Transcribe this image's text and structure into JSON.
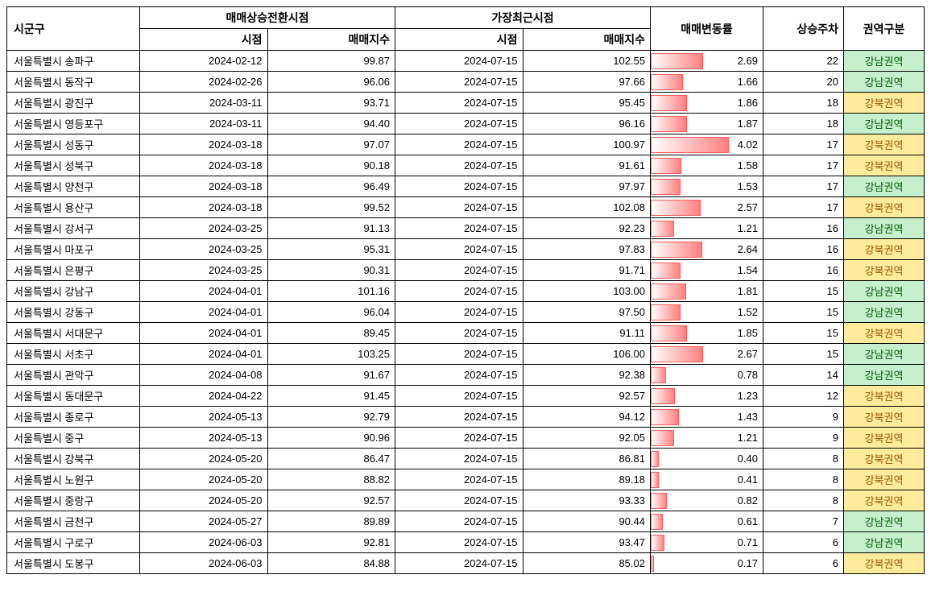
{
  "table": {
    "headers": {
      "sigungu": "시군구",
      "turning": "매매상승전환시점",
      "recent": "가장최근시점",
      "sub_date": "시점",
      "sub_index": "매매지수",
      "change": "매매변동률",
      "weeks": "상승주차",
      "region": "권역구분"
    },
    "styling": {
      "border_color": "#000000",
      "bar_gradient_from": "#ffffff",
      "bar_gradient_to": "#ff8080",
      "bar_border": "#ff6060",
      "region_colors": {
        "강남권역": {
          "bg": "#c6efce",
          "fg": "#006100"
        },
        "강북권역": {
          "bg": "#ffeb9c",
          "fg": "#9c5700"
        }
      },
      "font_size_body": 13,
      "font_size_header": 14,
      "max_change_for_bar": 4.02
    },
    "rows": [
      {
        "sigungu": "서울특별시 송파구",
        "t_date": "2024-02-12",
        "t_idx": "99.87",
        "r_date": "2024-07-15",
        "r_idx": "102.55",
        "change": "2.69",
        "weeks": "22",
        "region": "강남권역"
      },
      {
        "sigungu": "서울특별시 동작구",
        "t_date": "2024-02-26",
        "t_idx": "96.06",
        "r_date": "2024-07-15",
        "r_idx": "97.66",
        "change": "1.66",
        "weeks": "20",
        "region": "강남권역"
      },
      {
        "sigungu": "서울특별시 광진구",
        "t_date": "2024-03-11",
        "t_idx": "93.71",
        "r_date": "2024-07-15",
        "r_idx": "95.45",
        "change": "1.86",
        "weeks": "18",
        "region": "강북권역"
      },
      {
        "sigungu": "서울특별시 영등포구",
        "t_date": "2024-03-11",
        "t_idx": "94.40",
        "r_date": "2024-07-15",
        "r_idx": "96.16",
        "change": "1.87",
        "weeks": "18",
        "region": "강남권역"
      },
      {
        "sigungu": "서울특별시 성동구",
        "t_date": "2024-03-18",
        "t_idx": "97.07",
        "r_date": "2024-07-15",
        "r_idx": "100.97",
        "change": "4.02",
        "weeks": "17",
        "region": "강북권역"
      },
      {
        "sigungu": "서울특별시 성북구",
        "t_date": "2024-03-18",
        "t_idx": "90.18",
        "r_date": "2024-07-15",
        "r_idx": "91.61",
        "change": "1.58",
        "weeks": "17",
        "region": "강북권역"
      },
      {
        "sigungu": "서울특별시 양천구",
        "t_date": "2024-03-18",
        "t_idx": "96.49",
        "r_date": "2024-07-15",
        "r_idx": "97.97",
        "change": "1.53",
        "weeks": "17",
        "region": "강남권역"
      },
      {
        "sigungu": "서울특별시 용산구",
        "t_date": "2024-03-18",
        "t_idx": "99.52",
        "r_date": "2024-07-15",
        "r_idx": "102.08",
        "change": "2.57",
        "weeks": "17",
        "region": "강북권역"
      },
      {
        "sigungu": "서울특별시 강서구",
        "t_date": "2024-03-25",
        "t_idx": "91.13",
        "r_date": "2024-07-15",
        "r_idx": "92.23",
        "change": "1.21",
        "weeks": "16",
        "region": "강남권역"
      },
      {
        "sigungu": "서울특별시 마포구",
        "t_date": "2024-03-25",
        "t_idx": "95.31",
        "r_date": "2024-07-15",
        "r_idx": "97.83",
        "change": "2.64",
        "weeks": "16",
        "region": "강북권역"
      },
      {
        "sigungu": "서울특별시 은평구",
        "t_date": "2024-03-25",
        "t_idx": "90.31",
        "r_date": "2024-07-15",
        "r_idx": "91.71",
        "change": "1.54",
        "weeks": "16",
        "region": "강북권역"
      },
      {
        "sigungu": "서울특별시 강남구",
        "t_date": "2024-04-01",
        "t_idx": "101.16",
        "r_date": "2024-07-15",
        "r_idx": "103.00",
        "change": "1.81",
        "weeks": "15",
        "region": "강남권역"
      },
      {
        "sigungu": "서울특별시 강동구",
        "t_date": "2024-04-01",
        "t_idx": "96.04",
        "r_date": "2024-07-15",
        "r_idx": "97.50",
        "change": "1.52",
        "weeks": "15",
        "region": "강남권역"
      },
      {
        "sigungu": "서울특별시 서대문구",
        "t_date": "2024-04-01",
        "t_idx": "89.45",
        "r_date": "2024-07-15",
        "r_idx": "91.11",
        "change": "1.85",
        "weeks": "15",
        "region": "강북권역"
      },
      {
        "sigungu": "서울특별시 서초구",
        "t_date": "2024-04-01",
        "t_idx": "103.25",
        "r_date": "2024-07-15",
        "r_idx": "106.00",
        "change": "2.67",
        "weeks": "15",
        "region": "강남권역"
      },
      {
        "sigungu": "서울특별시 관악구",
        "t_date": "2024-04-08",
        "t_idx": "91.67",
        "r_date": "2024-07-15",
        "r_idx": "92.38",
        "change": "0.78",
        "weeks": "14",
        "region": "강남권역"
      },
      {
        "sigungu": "서울특별시 동대문구",
        "t_date": "2024-04-22",
        "t_idx": "91.45",
        "r_date": "2024-07-15",
        "r_idx": "92.57",
        "change": "1.23",
        "weeks": "12",
        "region": "강북권역"
      },
      {
        "sigungu": "서울특별시 종로구",
        "t_date": "2024-05-13",
        "t_idx": "92.79",
        "r_date": "2024-07-15",
        "r_idx": "94.12",
        "change": "1.43",
        "weeks": "9",
        "region": "강북권역"
      },
      {
        "sigungu": "서울특별시 중구",
        "t_date": "2024-05-13",
        "t_idx": "90.96",
        "r_date": "2024-07-15",
        "r_idx": "92.05",
        "change": "1.21",
        "weeks": "9",
        "region": "강북권역"
      },
      {
        "sigungu": "서울특별시 강북구",
        "t_date": "2024-05-20",
        "t_idx": "86.47",
        "r_date": "2024-07-15",
        "r_idx": "86.81",
        "change": "0.40",
        "weeks": "8",
        "region": "강북권역"
      },
      {
        "sigungu": "서울특별시 노원구",
        "t_date": "2024-05-20",
        "t_idx": "88.82",
        "r_date": "2024-07-15",
        "r_idx": "89.18",
        "change": "0.41",
        "weeks": "8",
        "region": "강북권역"
      },
      {
        "sigungu": "서울특별시 중랑구",
        "t_date": "2024-05-20",
        "t_idx": "92.57",
        "r_date": "2024-07-15",
        "r_idx": "93.33",
        "change": "0.82",
        "weeks": "8",
        "region": "강북권역"
      },
      {
        "sigungu": "서울특별시 금천구",
        "t_date": "2024-05-27",
        "t_idx": "89.89",
        "r_date": "2024-07-15",
        "r_idx": "90.44",
        "change": "0.61",
        "weeks": "7",
        "region": "강남권역"
      },
      {
        "sigungu": "서울특별시 구로구",
        "t_date": "2024-06-03",
        "t_idx": "92.81",
        "r_date": "2024-07-15",
        "r_idx": "93.47",
        "change": "0.71",
        "weeks": "6",
        "region": "강남권역"
      },
      {
        "sigungu": "서울특별시 도봉구",
        "t_date": "2024-06-03",
        "t_idx": "84.88",
        "r_date": "2024-07-15",
        "r_idx": "85.02",
        "change": "0.17",
        "weeks": "6",
        "region": "강북권역"
      }
    ]
  }
}
